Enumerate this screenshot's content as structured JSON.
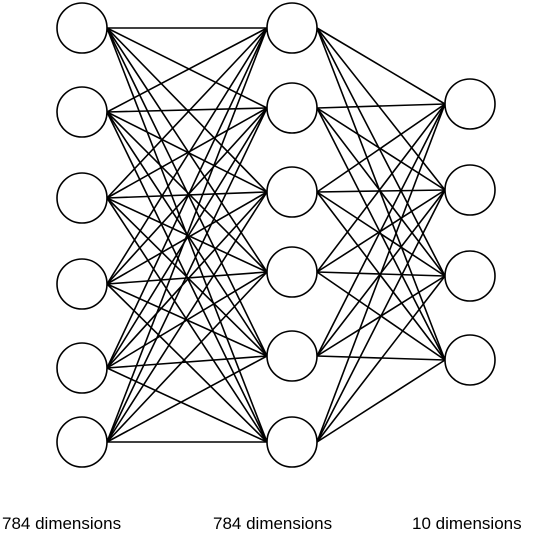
{
  "diagram": {
    "type": "neural-network",
    "stroke_color": "#000000",
    "node_fill": "#ffffff",
    "layers": [
      {
        "label": "784 dimensions",
        "node_count": 6
      },
      {
        "label": "784 dimensions",
        "node_count": 6
      },
      {
        "label": "10 dimensions",
        "node_count": 4
      }
    ],
    "connections": [
      {
        "from": 0,
        "to": 1,
        "pattern": "fully-connected"
      },
      {
        "from": 1,
        "to": 2,
        "pattern": "fully-connected"
      }
    ]
  }
}
